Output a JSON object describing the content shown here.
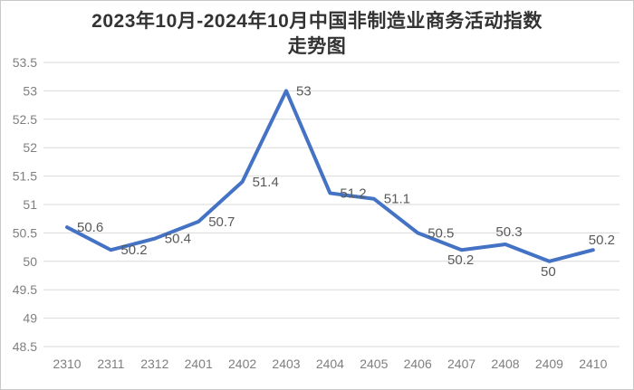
{
  "window": {
    "background": "#ffffff",
    "border_color": "#c9c9c9"
  },
  "chart_data": {
    "type": "line",
    "title": "2023年10月-2024年10月中国非制造业商务活动指数走势图",
    "title_lines": [
      "2023年10月-2024年10月中国非制造业商务活动指数",
      "走势图"
    ],
    "xlabel": "",
    "ylabel": "",
    "categories": [
      "2310",
      "2311",
      "2312",
      "2401",
      "2402",
      "2403",
      "2404",
      "2405",
      "2406",
      "2407",
      "2408",
      "2409",
      "2410"
    ],
    "values": [
      50.6,
      50.2,
      50.4,
      50.7,
      51.4,
      53,
      51.2,
      51.1,
      50.5,
      50.2,
      50.3,
      50,
      50.2
    ],
    "data_labels": [
      "50.6",
      "50.2",
      "50.4",
      "50.7",
      "51.4",
      "53",
      "51.2",
      "51.1",
      "50.5",
      "50.2",
      "50.3",
      "50",
      "50.2"
    ],
    "ylim": [
      48.5,
      53.5
    ],
    "ytick_step": 0.5,
    "ytick_labels": [
      "48.5",
      "49",
      "49.5",
      "50",
      "50.5",
      "51",
      "51.5",
      "52",
      "52.5",
      "53",
      "53.5"
    ],
    "grid": true,
    "legend": false,
    "line_color": "#4472C4",
    "gridline_color": "#D9D9D9",
    "tick_label_color": "#7f7f7f",
    "data_label_color": "#595959",
    "title_color": "#333333",
    "label_positions": [
      "right",
      "right",
      "right",
      "right",
      "right",
      "right",
      "right",
      "right",
      "right",
      "below",
      "above",
      "below",
      "above-right"
    ]
  }
}
